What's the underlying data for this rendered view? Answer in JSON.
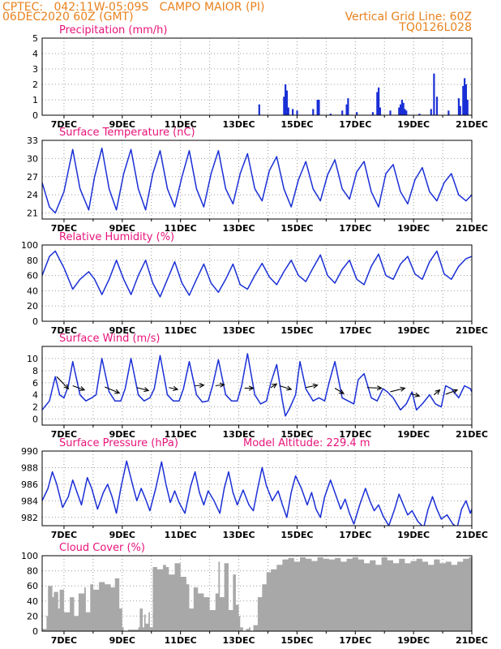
{
  "header": {
    "line1_left": "CPTEC:   042:11W-05:09S   CAMPO MAIOR (PI)",
    "line2_left": "06DEC2020 60Z (GMT)",
    "line2_right": "Vertical Grid Line: 60Z",
    "line3_right": "TQ0126L028"
  },
  "colors": {
    "header": "#e8821e",
    "title": "#e8137a",
    "series": "#1a2fd6",
    "cloud": "#a8a8a8",
    "wind_arrow": "#000000",
    "grid": "#9a9a9a"
  },
  "x_axis": {
    "start_day": 6.25,
    "end_day": 21,
    "tick_days": [
      7,
      9,
      11,
      13,
      15,
      17,
      19,
      21
    ],
    "tick_labels": [
      "7DEC",
      "9DEC",
      "11DEC",
      "13DEC",
      "15DEC",
      "17DEC",
      "19DEC",
      "21DEC"
    ],
    "minor_tick_days": [
      8,
      10,
      12,
      14,
      16,
      18,
      20
    ]
  },
  "chart_data": [
    {
      "id": "precip",
      "type": "bar",
      "title": "Precipitation (mm/h)",
      "ylim": [
        0,
        5
      ],
      "yticks": [
        0,
        1,
        2,
        3,
        4,
        5
      ],
      "grid": true,
      "bars": [
        [
          13.7,
          0.7
        ],
        [
          14.55,
          1.2
        ],
        [
          14.6,
          2.0
        ],
        [
          14.65,
          1.6
        ],
        [
          14.7,
          0.5
        ],
        [
          14.85,
          0.4
        ],
        [
          15.0,
          0.3
        ],
        [
          15.55,
          0.4
        ],
        [
          15.7,
          1.0
        ],
        [
          15.75,
          1.0
        ],
        [
          16.15,
          0.1
        ],
        [
          16.55,
          0.3
        ],
        [
          16.7,
          0.7
        ],
        [
          16.75,
          1.1
        ],
        [
          17.05,
          0.2
        ],
        [
          17.6,
          0.2
        ],
        [
          17.75,
          1.5
        ],
        [
          17.8,
          1.8
        ],
        [
          17.85,
          0.5
        ],
        [
          18.2,
          0.3
        ],
        [
          18.5,
          0.5
        ],
        [
          18.55,
          0.7
        ],
        [
          18.6,
          1.0
        ],
        [
          18.65,
          0.8
        ],
        [
          18.7,
          0.4
        ],
        [
          18.75,
          0.3
        ],
        [
          19.2,
          0.1
        ],
        [
          19.6,
          0.4
        ],
        [
          19.7,
          2.7
        ],
        [
          19.8,
          1.2
        ],
        [
          20.2,
          0.3
        ],
        [
          20.55,
          1.1
        ],
        [
          20.6,
          0.6
        ],
        [
          20.7,
          1.9
        ],
        [
          20.75,
          2.4
        ],
        [
          20.8,
          2.0
        ],
        [
          20.85,
          1.0
        ]
      ]
    },
    {
      "id": "temperature",
      "type": "line",
      "title": "Surface Temperature (nC)",
      "ylim": [
        20,
        33
      ],
      "yticks": [
        21,
        24,
        27,
        30,
        33
      ],
      "grid": true,
      "x": [
        6.25,
        6.5,
        6.7,
        7.0,
        7.3,
        7.55,
        7.85,
        8.05,
        8.3,
        8.55,
        8.8,
        9.05,
        9.3,
        9.55,
        9.8,
        10.05,
        10.3,
        10.55,
        10.8,
        11.05,
        11.3,
        11.55,
        11.8,
        12.05,
        12.3,
        12.55,
        12.8,
        13.05,
        13.3,
        13.55,
        13.8,
        14.05,
        14.3,
        14.55,
        14.8,
        15.05,
        15.3,
        15.55,
        15.8,
        16.05,
        16.3,
        16.55,
        16.8,
        17.05,
        17.3,
        17.55,
        17.8,
        18.05,
        18.3,
        18.55,
        18.8,
        19.05,
        19.3,
        19.55,
        19.8,
        20.05,
        20.3,
        20.55,
        20.8,
        21.0
      ],
      "y": [
        26,
        22,
        21,
        24.5,
        31.5,
        25,
        21.5,
        27,
        31.7,
        25,
        21.5,
        27.5,
        31.5,
        25,
        21.5,
        27.5,
        31.3,
        25,
        22,
        27,
        31.3,
        25,
        22,
        27.5,
        31.3,
        25,
        22.5,
        27.5,
        30.8,
        25,
        23,
        28,
        30.3,
        25,
        22,
        26.5,
        29.5,
        25,
        23,
        27.3,
        29.8,
        25,
        23.3,
        27.8,
        29.5,
        24.5,
        22,
        27.5,
        29,
        24.5,
        22.5,
        26.5,
        28.5,
        24.5,
        23,
        26,
        27.5,
        24,
        23,
        24
      ]
    },
    {
      "id": "humidity",
      "type": "line",
      "title": "Relative Humidity (%)",
      "ylim": [
        0,
        100
      ],
      "yticks": [
        0,
        20,
        40,
        60,
        80,
        100
      ],
      "grid": true,
      "x": [
        6.25,
        6.5,
        6.7,
        7.0,
        7.3,
        7.55,
        7.85,
        8.05,
        8.3,
        8.55,
        8.8,
        9.05,
        9.3,
        9.55,
        9.8,
        10.05,
        10.3,
        10.55,
        10.8,
        11.05,
        11.3,
        11.55,
        11.8,
        12.05,
        12.3,
        12.55,
        12.8,
        13.05,
        13.3,
        13.55,
        13.8,
        14.05,
        14.3,
        14.55,
        14.8,
        15.05,
        15.3,
        15.55,
        15.8,
        16.05,
        16.3,
        16.55,
        16.8,
        17.05,
        17.3,
        17.55,
        17.8,
        18.05,
        18.3,
        18.55,
        18.8,
        19.05,
        19.3,
        19.55,
        19.8,
        20.05,
        20.3,
        20.55,
        20.8,
        21.0
      ],
      "y": [
        60,
        85,
        92,
        70,
        42,
        55,
        65,
        55,
        35,
        55,
        80,
        55,
        35,
        60,
        80,
        50,
        32,
        55,
        78,
        50,
        34,
        55,
        75,
        50,
        38,
        55,
        75,
        48,
        42,
        60,
        76,
        58,
        48,
        65,
        80,
        60,
        52,
        70,
        87,
        60,
        50,
        68,
        80,
        55,
        48,
        72,
        88,
        60,
        55,
        75,
        85,
        62,
        55,
        78,
        92,
        62,
        55,
        72,
        82,
        85
      ]
    },
    {
      "id": "wind",
      "type": "line",
      "title": "Surface Wind (m/s)",
      "ylim": [
        -1,
        12
      ],
      "yticks": [
        0,
        2,
        4,
        6,
        8,
        10
      ],
      "grid": true,
      "x": [
        6.25,
        6.5,
        6.7,
        6.85,
        7.0,
        7.15,
        7.3,
        7.55,
        7.75,
        7.95,
        8.1,
        8.3,
        8.55,
        8.75,
        8.95,
        9.1,
        9.3,
        9.55,
        9.75,
        9.95,
        10.1,
        10.3,
        10.55,
        10.75,
        10.95,
        11.1,
        11.3,
        11.55,
        11.75,
        11.95,
        12.1,
        12.3,
        12.55,
        12.75,
        12.95,
        13.1,
        13.3,
        13.55,
        13.75,
        13.95,
        14.1,
        14.3,
        14.5,
        14.6,
        14.75,
        14.95,
        15.1,
        15.3,
        15.55,
        15.75,
        15.95,
        16.1,
        16.3,
        16.55,
        16.75,
        16.95,
        17.1,
        17.3,
        17.55,
        17.75,
        17.95,
        18.1,
        18.3,
        18.55,
        18.75,
        18.95,
        19.1,
        19.3,
        19.55,
        19.75,
        19.95,
        20.1,
        20.3,
        20.55,
        20.75,
        20.95,
        21.0
      ],
      "y": [
        1.5,
        3.0,
        7.0,
        4.0,
        3.5,
        5.5,
        9.5,
        4.0,
        3.0,
        3.5,
        4.0,
        10.0,
        4.5,
        3.0,
        3.0,
        5.0,
        10.0,
        4.0,
        3.0,
        3.5,
        5.0,
        10.5,
        4.0,
        3.0,
        3.0,
        5.0,
        9.5,
        4.0,
        2.8,
        3.0,
        5.5,
        9.8,
        4.0,
        3.0,
        3.0,
        5.5,
        10.8,
        4.0,
        2.5,
        3.0,
        6.0,
        9.0,
        3.0,
        0.5,
        1.8,
        4.0,
        9.5,
        5.0,
        3.0,
        3.5,
        3.0,
        6.0,
        9.5,
        3.5,
        3.0,
        2.5,
        6.5,
        7.5,
        3.5,
        3.0,
        5.0,
        4.5,
        3.5,
        1.5,
        2.5,
        4.5,
        1.5,
        2.5,
        4.0,
        2.5,
        2.0,
        5.5,
        5.0,
        3.5,
        5.5,
        5.0,
        4.5
      ],
      "arrows": [
        [
          6.75,
          7.0,
          7.15,
          5.0
        ],
        [
          7.3,
          5.5,
          7.7,
          4.8
        ],
        [
          8.4,
          5.3,
          8.9,
          4.3
        ],
        [
          9.5,
          5.2,
          9.9,
          4.7
        ],
        [
          10.6,
          5.2,
          10.9,
          4.9
        ],
        [
          11.5,
          5.5,
          11.8,
          5.6
        ],
        [
          12.2,
          5.5,
          12.5,
          5.7
        ],
        [
          13.2,
          5.1,
          13.5,
          5.1
        ],
        [
          14.1,
          5.2,
          14.3,
          5.8
        ],
        [
          14.4,
          5.5,
          14.8,
          4.9
        ],
        [
          15.3,
          5.2,
          15.7,
          5.6
        ],
        [
          16.3,
          5.1,
          16.6,
          4.2
        ],
        [
          17.4,
          5.2,
          17.9,
          5.1
        ],
        [
          18.2,
          4.5,
          18.7,
          5.1
        ],
        [
          18.9,
          4.2,
          19.2,
          3.8
        ],
        [
          19.7,
          4.0,
          19.9,
          4.8
        ],
        [
          20.1,
          4.1,
          20.5,
          4.8
        ]
      ]
    },
    {
      "id": "pressure",
      "type": "line",
      "title": "Surface Pressure (hPa)",
      "annotation": "Model Altitude: 229.4  m",
      "ylim": [
        981,
        990
      ],
      "yticks": [
        982,
        984,
        986,
        988,
        990
      ],
      "grid": true,
      "x": [
        6.25,
        6.45,
        6.6,
        6.75,
        6.95,
        7.15,
        7.3,
        7.45,
        7.6,
        7.8,
        7.95,
        8.15,
        8.35,
        8.5,
        8.65,
        8.8,
        8.95,
        9.15,
        9.35,
        9.5,
        9.65,
        9.8,
        9.95,
        10.15,
        10.35,
        10.5,
        10.65,
        10.8,
        10.95,
        11.15,
        11.35,
        11.5,
        11.65,
        11.8,
        11.95,
        12.15,
        12.35,
        12.5,
        12.65,
        12.8,
        12.95,
        13.15,
        13.35,
        13.5,
        13.65,
        13.8,
        13.95,
        14.15,
        14.35,
        14.5,
        14.65,
        14.8,
        14.95,
        15.15,
        15.35,
        15.5,
        15.65,
        15.8,
        15.95,
        16.15,
        16.35,
        16.5,
        16.65,
        16.8,
        16.95,
        17.15,
        17.35,
        17.5,
        17.65,
        17.8,
        17.95,
        18.15,
        18.35,
        18.5,
        18.65,
        18.8,
        18.95,
        19.15,
        19.35,
        19.5,
        19.65,
        19.8,
        19.95,
        20.15,
        20.35,
        20.5,
        20.65,
        20.8,
        20.95,
        21.0
      ],
      "y": [
        984.0,
        985.5,
        987.5,
        986.0,
        983.2,
        984.5,
        986.5,
        985.0,
        983.5,
        986.8,
        985.5,
        983.0,
        985.0,
        986.0,
        984.5,
        982.5,
        985.5,
        988.8,
        986.0,
        984.0,
        985.5,
        984.2,
        982.8,
        985.5,
        988.7,
        986.0,
        983.8,
        985.2,
        983.8,
        982.5,
        985.8,
        987.5,
        985.0,
        983.5,
        985.2,
        984.0,
        982.5,
        985.5,
        987.5,
        985.0,
        983.5,
        985.3,
        983.5,
        982.8,
        985.5,
        988.0,
        985.8,
        984.0,
        985.2,
        983.5,
        982.0,
        985.0,
        987.0,
        985.5,
        983.5,
        985.0,
        983.0,
        982.0,
        984.5,
        986.5,
        984.5,
        983.0,
        984.2,
        982.5,
        981.2,
        983.5,
        985.5,
        984.0,
        982.8,
        983.5,
        982.2,
        981.0,
        983.0,
        984.8,
        983.5,
        982.3,
        982.8,
        981.5,
        980.8,
        983.0,
        984.5,
        983.0,
        981.8,
        982.3,
        981.2,
        980.8,
        983.0,
        984.0,
        982.5,
        983.0
      ]
    },
    {
      "id": "cloud",
      "type": "area",
      "title": "Cloud Cover (%)",
      "ylim": [
        0,
        100
      ],
      "yticks": [
        0,
        20,
        40,
        60,
        80,
        100
      ],
      "grid": true,
      "x": [
        6.25,
        6.4,
        6.45,
        6.6,
        6.65,
        6.8,
        6.85,
        7.0,
        7.2,
        7.35,
        7.5,
        7.7,
        7.75,
        7.9,
        8.0,
        8.2,
        8.4,
        8.6,
        8.75,
        8.9,
        9.0,
        9.05,
        9.2,
        9.4,
        9.55,
        9.6,
        9.7,
        9.75,
        9.8,
        9.9,
        9.95,
        10.05,
        10.2,
        10.4,
        10.5,
        10.6,
        10.8,
        11.0,
        11.2,
        11.3,
        11.45,
        11.6,
        11.8,
        12.0,
        12.2,
        12.3,
        12.35,
        12.5,
        12.65,
        12.8,
        12.9,
        13.0,
        13.05,
        13.15,
        13.25,
        13.35,
        13.4,
        13.5,
        13.65,
        13.8,
        13.95,
        14.1,
        14.3,
        14.5,
        14.7,
        14.9,
        15.1,
        15.3,
        15.5,
        15.7,
        15.9,
        16.1,
        16.3,
        16.5,
        16.7,
        16.9,
        17.1,
        17.3,
        17.5,
        17.7,
        17.9,
        18.1,
        18.3,
        18.5,
        18.7,
        18.9,
        19.1,
        19.3,
        19.5,
        19.7,
        19.9,
        20.1,
        20.3,
        20.5,
        20.7,
        20.9,
        21.0
      ],
      "y": [
        3,
        20,
        60,
        45,
        52,
        30,
        55,
        25,
        45,
        20,
        50,
        58,
        25,
        62,
        55,
        65,
        62,
        58,
        70,
        30,
        5,
        0,
        2,
        2,
        5,
        30,
        5,
        22,
        10,
        25,
        5,
        85,
        82,
        88,
        85,
        75,
        90,
        72,
        62,
        30,
        58,
        50,
        45,
        28,
        50,
        92,
        45,
        90,
        28,
        75,
        35,
        20,
        5,
        0,
        3,
        5,
        0,
        8,
        45,
        62,
        78,
        82,
        88,
        95,
        97,
        92,
        98,
        96,
        93,
        98,
        96,
        95,
        97,
        92,
        96,
        98,
        95,
        90,
        94,
        88,
        98,
        94,
        90,
        96,
        90,
        93,
        96,
        92,
        88,
        95,
        90,
        92,
        88,
        92,
        96,
        98,
        95
      ]
    }
  ]
}
